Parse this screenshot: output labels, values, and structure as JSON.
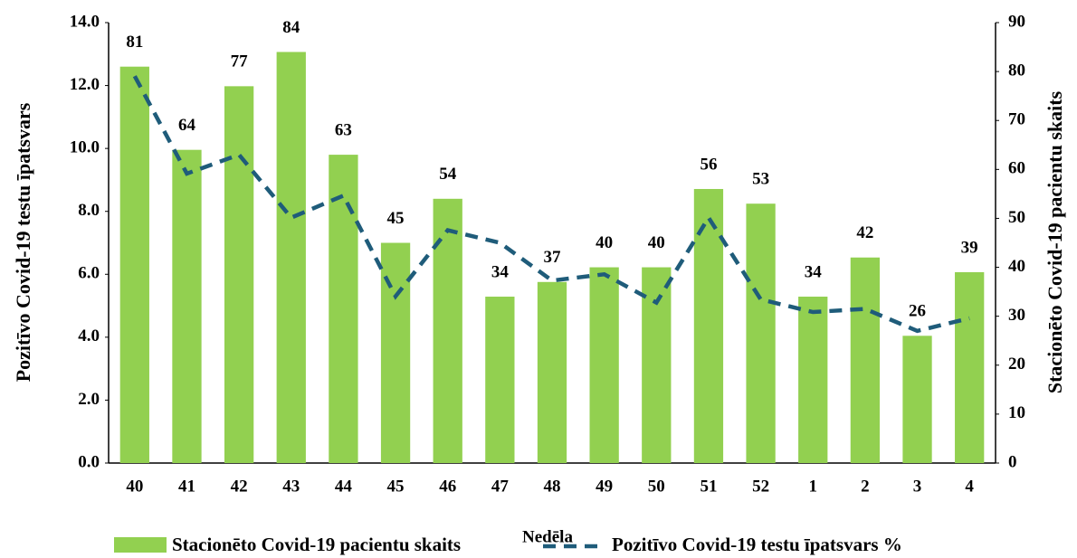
{
  "chart_data": {
    "type": "combo",
    "x_label": "Nedēla",
    "y_label": "Pozitīvo Covid-19 testu īpatsvars",
    "y2_label": "Stacionēto Covid-19 pacientu skaits",
    "categories": [
      "40",
      "41",
      "42",
      "43",
      "44",
      "45",
      "46",
      "47",
      "48",
      "49",
      "50",
      "51",
      "52",
      "1",
      "2",
      "3",
      "4"
    ],
    "series": [
      {
        "name": "Stacionēto Covid-19 pacientu skaits",
        "type": "bar",
        "axis": "y2",
        "color": "#92d050",
        "values": [
          81,
          64,
          77,
          84,
          63,
          45,
          54,
          34,
          37,
          40,
          40,
          56,
          53,
          34,
          42,
          26,
          39
        ]
      },
      {
        "name": "Pozitīvo Covid-19 testu īpatsvars %",
        "type": "line",
        "axis": "y",
        "color": "#1f5c7a",
        "values": [
          12.3,
          9.2,
          9.8,
          7.8,
          8.5,
          5.3,
          7.4,
          7.0,
          5.8,
          6.0,
          5.1,
          7.8,
          5.2,
          4.8,
          4.9,
          4.2,
          4.6
        ]
      }
    ],
    "ylim": [
      0,
      14
    ],
    "yticks": [
      {
        "value": 0,
        "label": "0.0"
      },
      {
        "value": 2,
        "label": "2.0"
      },
      {
        "value": 4,
        "label": "4.0"
      },
      {
        "value": 6,
        "label": "6.0"
      },
      {
        "value": 8,
        "label": "8.0"
      },
      {
        "value": 10,
        "label": "10.0"
      },
      {
        "value": 12,
        "label": "12.0"
      },
      {
        "value": 14,
        "label": "14.0"
      }
    ],
    "y2lim": [
      0,
      90
    ],
    "y2ticks": [
      0,
      10,
      20,
      30,
      40,
      50,
      60,
      70,
      80,
      90
    ],
    "legend": "bottom",
    "dashed_line": true
  }
}
